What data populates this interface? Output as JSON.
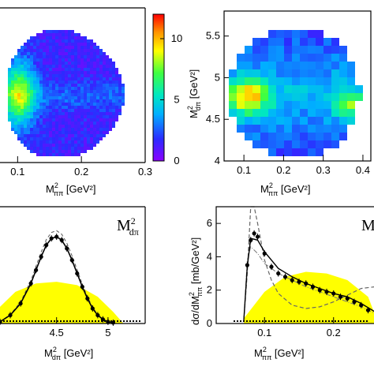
{
  "chart_data": [
    {
      "id": "p1",
      "type": "heatmap",
      "xlabel": "M²ππ [GeV²]",
      "x_label_parts": {
        "main": "M",
        "sup": "2",
        "sub": "ππ",
        "unit": " [GeV²]"
      },
      "xlim": [
        0.06,
        0.3
      ],
      "x_ticks": [
        "0.1",
        "0.2",
        "0.3"
      ],
      "x_tick_values": [
        0.1,
        0.2,
        0.3
      ],
      "colorbar": {
        "range": [
          0,
          12
        ],
        "ticks": [
          "0",
          "5",
          "10"
        ],
        "tick_values": [
          0,
          5,
          10
        ]
      },
      "grid": false
    },
    {
      "id": "p2",
      "type": "heatmap",
      "xlabel": "M²ππ [GeV²]",
      "x_label_parts": {
        "main": "M",
        "sup": "2",
        "sub": "ππ",
        "unit": " [GeV²]"
      },
      "ylabel": "M²dπ [GeV²]",
      "y_label_parts": {
        "main": "M",
        "sup": "2",
        "sub": "dπ",
        "unit": " [GeV²]"
      },
      "xlim": [
        0.05,
        0.42
      ],
      "ylim": [
        4.0,
        5.8
      ],
      "x_ticks": [
        "0.1",
        "0.2",
        "0.3",
        "0.4"
      ],
      "x_tick_values": [
        0.1,
        0.2,
        0.3,
        0.4
      ],
      "y_ticks": [
        "4",
        "4.5",
        "5",
        "5.5"
      ],
      "y_tick_values": [
        4.0,
        4.5,
        5.0,
        5.5
      ],
      "grid": false
    },
    {
      "id": "p3",
      "type": "line",
      "xlabel": "M²dπ [GeV²]",
      "x_label_parts": {
        "main": "M",
        "sup": "2",
        "sub": "dπ",
        "unit": " [GeV²]"
      },
      "panel_label": {
        "main": "M",
        "sup": "2",
        "sub": "dπ"
      },
      "xlim": [
        3.95,
        5.3
      ],
      "x_ticks": [
        "4.5",
        "5"
      ],
      "x_tick_values": [
        4.5,
        5.0
      ],
      "ylim": [
        0,
        7
      ],
      "series": [
        {
          "style": "data-points",
          "x": [
            3.95,
            4.05,
            4.15,
            4.25,
            4.3,
            4.35,
            4.4,
            4.45,
            4.5,
            4.55,
            4.6,
            4.65,
            4.7,
            4.75,
            4.8,
            4.85,
            4.9,
            4.95,
            5.0,
            5.05
          ],
          "y": [
            0.1,
            0.5,
            1.2,
            2.4,
            3.2,
            4.0,
            4.7,
            5.1,
            5.2,
            5.0,
            4.5,
            3.8,
            3.0,
            2.2,
            1.5,
            0.9,
            0.5,
            0.25,
            0.1,
            0.05
          ]
        },
        {
          "style": "phase-space-fill",
          "color": "#ffff00",
          "x": [
            3.95,
            4.1,
            4.3,
            4.5,
            4.7,
            4.9,
            5.05,
            5.15
          ],
          "y": [
            1.0,
            1.9,
            2.4,
            2.5,
            2.3,
            1.6,
            0.7,
            0
          ]
        }
      ]
    },
    {
      "id": "p4",
      "type": "line",
      "xlabel": "M²ππ [GeV²]",
      "x_label_parts": {
        "main": "M",
        "sup": "2",
        "sub": "ππ",
        "unit": " [GeV²]"
      },
      "ylabel": "dσ/dM²ππ [mb/GeV²]",
      "y_label_parts": {
        "a": "dσ/dM",
        "sup": "2",
        "sub": "ππ",
        "unit": " [mb/GeV²]"
      },
      "panel_label": "M",
      "xlim": [
        0.03,
        0.27
      ],
      "ylim": [
        0,
        7
      ],
      "x_ticks": [
        "0.1",
        "0.2"
      ],
      "x_tick_values": [
        0.1,
        0.2
      ],
      "y_ticks": [
        "0",
        "2",
        "4",
        "6"
      ],
      "y_tick_values": [
        0,
        2,
        4,
        6
      ],
      "series": [
        {
          "style": "data-points",
          "x": [
            0.075,
            0.08,
            0.085,
            0.09,
            0.1,
            0.11,
            0.12,
            0.13,
            0.14,
            0.15,
            0.16,
            0.17,
            0.18,
            0.19,
            0.2,
            0.21,
            0.22,
            0.23,
            0.24,
            0.25
          ],
          "y": [
            3.5,
            5.0,
            5.4,
            5.2,
            4.2,
            3.4,
            3.0,
            2.8,
            2.6,
            2.5,
            2.4,
            2.2,
            2.0,
            1.9,
            1.8,
            1.6,
            1.5,
            1.3,
            1.1,
            0.8
          ]
        },
        {
          "style": "phase-space-fill",
          "color": "#ffff00",
          "x": [
            0.07,
            0.1,
            0.13,
            0.16,
            0.19,
            0.22,
            0.25,
            0.265
          ],
          "y": [
            0.3,
            1.9,
            2.8,
            3.1,
            3.0,
            2.6,
            1.6,
            0
          ]
        },
        {
          "style": "dashed",
          "x": [
            0.07,
            0.075,
            0.08,
            0.085,
            0.09,
            0.1,
            0.11,
            0.12,
            0.14,
            0.16,
            0.18,
            0.2,
            0.22,
            0.24,
            0.26
          ],
          "y": [
            0.2,
            3.0,
            7.0,
            7.0,
            6.0,
            3.8,
            2.6,
            1.8,
            1.1,
            0.9,
            1.0,
            1.3,
            1.7,
            2.1,
            2.2
          ]
        },
        {
          "style": "dash-dot",
          "x": [
            0.07,
            0.075,
            0.08,
            0.09,
            0.1,
            0.12,
            0.14,
            0.16,
            0.18,
            0.2,
            0.22,
            0.24,
            0.26
          ],
          "y": [
            0.2,
            3.8,
            4.6,
            4.2,
            3.6,
            3.0,
            2.6,
            2.2,
            1.9,
            1.6,
            1.3,
            1.0,
            0.6
          ]
        },
        {
          "style": "solid",
          "x": [
            0.07,
            0.075,
            0.08,
            0.09,
            0.1,
            0.12,
            0.14,
            0.16,
            0.18,
            0.2,
            0.22,
            0.24,
            0.26
          ],
          "y": [
            0.2,
            3.4,
            5.1,
            5.0,
            4.3,
            3.3,
            2.8,
            2.4,
            2.1,
            1.8,
            1.6,
            1.2,
            0.7
          ]
        }
      ]
    }
  ]
}
